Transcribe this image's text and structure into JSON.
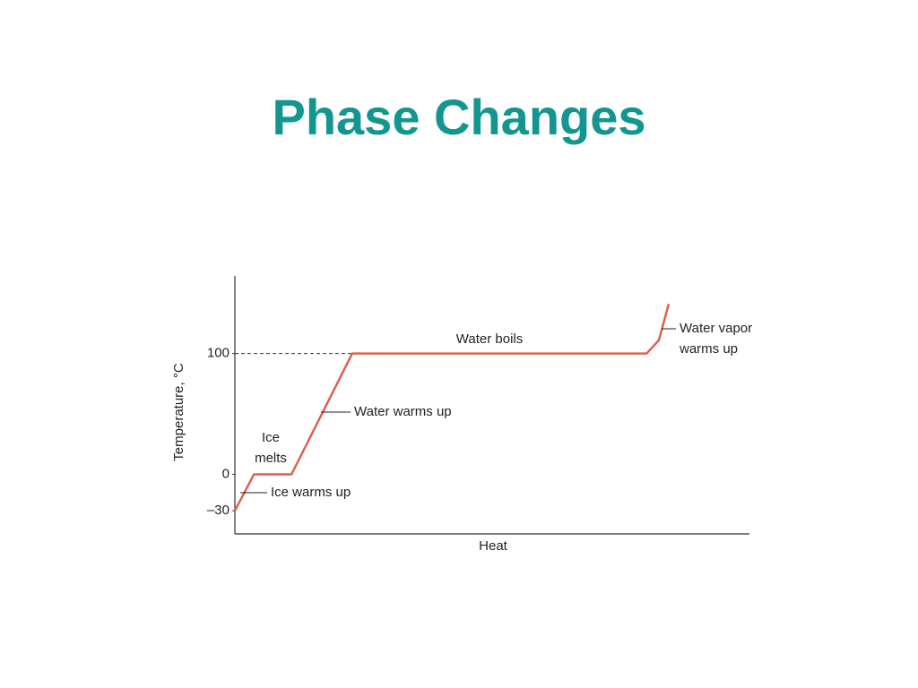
{
  "chart_data": {
    "type": "line",
    "title": "Phase Changes",
    "x_label": "Heat",
    "y_label": "Temperature, °C",
    "x": [
      0,
      3.7,
      11,
      22.8,
      80,
      82.4,
      84.3
    ],
    "series": [
      {
        "color": "#e0604e",
        "values": [
          -30,
          0,
          0,
          100,
          100,
          111,
          141
        ]
      }
    ],
    "xlim": [
      0,
      100
    ],
    "ylim": [
      -50,
      165
    ],
    "yticks": [
      {
        "value": -30,
        "label": "–30"
      },
      0,
      100
    ],
    "reference_lines": [
      {
        "y": 100,
        "style": "dashed"
      }
    ],
    "annotations": [
      [
        "Ice warms up"
      ],
      [
        "Ice",
        "melts"
      ],
      [
        "Water warms up"
      ],
      [
        "Water boils"
      ],
      [
        "Water vapor",
        "warms up"
      ]
    ]
  }
}
